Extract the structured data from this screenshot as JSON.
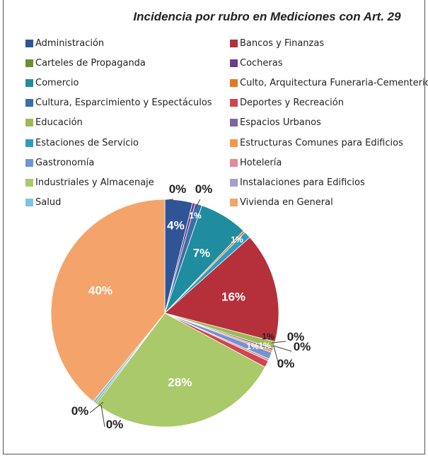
{
  "chart_data": {
    "type": "pie",
    "title": "Incidencia por rubro en Mediciones con Art. 29",
    "legend_position": "top",
    "slices": [
      {
        "name": "Administración",
        "value": 4,
        "label": "4%",
        "color": "#2f5597"
      },
      {
        "name": "Cocheras",
        "value": 0.4,
        "label": "0%",
        "color": "#6b3d8a"
      },
      {
        "name": "Cultura, Esparcimiento y Espectáculos",
        "value": 1.0,
        "label": "1%",
        "color": "#3a6ea5"
      },
      {
        "name": "Comercio",
        "value": 7,
        "label": "7%",
        "color": "#1f8ca0"
      },
      {
        "name": "Culto, Arquitectura Funeraria-Cementerios",
        "value": 0.3,
        "label": "0%",
        "color": "#e07b22"
      },
      {
        "name": "Estaciones de Servicio",
        "value": 1.0,
        "label": "1%",
        "color": "#2e9cc0"
      },
      {
        "name": "Bancos y Finanzas",
        "value": 16,
        "label": "16%",
        "color": "#b5303a"
      },
      {
        "name": "Educación",
        "value": 1.0,
        "label": "1%",
        "color": "#9bbb59"
      },
      {
        "name": "Espacios Urbanos",
        "value": 0.3,
        "label": "0%",
        "color": "#8064a2"
      },
      {
        "name": "Estructuras Comunes para Edificios",
        "value": 0.3,
        "label": "0%",
        "color": "#f79646"
      },
      {
        "name": "Gastronomía",
        "value": 1.0,
        "label": "1%",
        "color": "#7096d1"
      },
      {
        "name": "Hotelería",
        "value": 0.3,
        "label": "0%",
        "color": "#e38b95"
      },
      {
        "name": "Deportes y Recreación",
        "value": 1.0,
        "label": "1%",
        "color": "#d0454f"
      },
      {
        "name": "Industriales y Almacenaje",
        "value": 28,
        "label": "28%",
        "color": "#a9c96a"
      },
      {
        "name": "Carteles de Propaganda",
        "value": 0.2,
        "label": "0%",
        "color": "#6a8f2f"
      },
      {
        "name": "Salud",
        "value": 0.4,
        "label": "0%",
        "color": "#7fc3e0"
      },
      {
        "name": "Vivienda en General",
        "value": 40,
        "label": "40%",
        "color": "#f4a46a"
      }
    ],
    "legend": [
      {
        "label": "Administración",
        "color": "#2f5597"
      },
      {
        "label": "Bancos y Finanzas",
        "color": "#b5303a"
      },
      {
        "label": "Carteles de Propaganda",
        "color": "#6a8f2f"
      },
      {
        "label": "Cocheras",
        "color": "#6b3d8a"
      },
      {
        "label": "Comercio",
        "color": "#1f8ca0"
      },
      {
        "label": "Culto, Arquitectura Funeraria-Cementerios",
        "color": "#e07b22"
      },
      {
        "label": "Cultura, Esparcimiento y Espectáculos",
        "color": "#3a6ea5"
      },
      {
        "label": "Deportes y Recreación",
        "color": "#d0454f"
      },
      {
        "label": "Educación",
        "color": "#9bbb59"
      },
      {
        "label": "Espacios Urbanos",
        "color": "#8064a2"
      },
      {
        "label": "Estaciones de Servicio",
        "color": "#2e9cc0"
      },
      {
        "label": "Estructuras Comunes para Edificios",
        "color": "#f79646"
      },
      {
        "label": "Gastronomía",
        "color": "#7096d1"
      },
      {
        "label": "Hotelería",
        "color": "#e38b95"
      },
      {
        "label": "Industriales y Almacenaje",
        "color": "#a9c96a"
      },
      {
        "label": "Instalaciones para Edificios",
        "color": "#a59fcf"
      },
      {
        "label": "Salud",
        "color": "#7fc3e0"
      },
      {
        "label": "Vivienda en General",
        "color": "#f4a46a"
      }
    ]
  }
}
